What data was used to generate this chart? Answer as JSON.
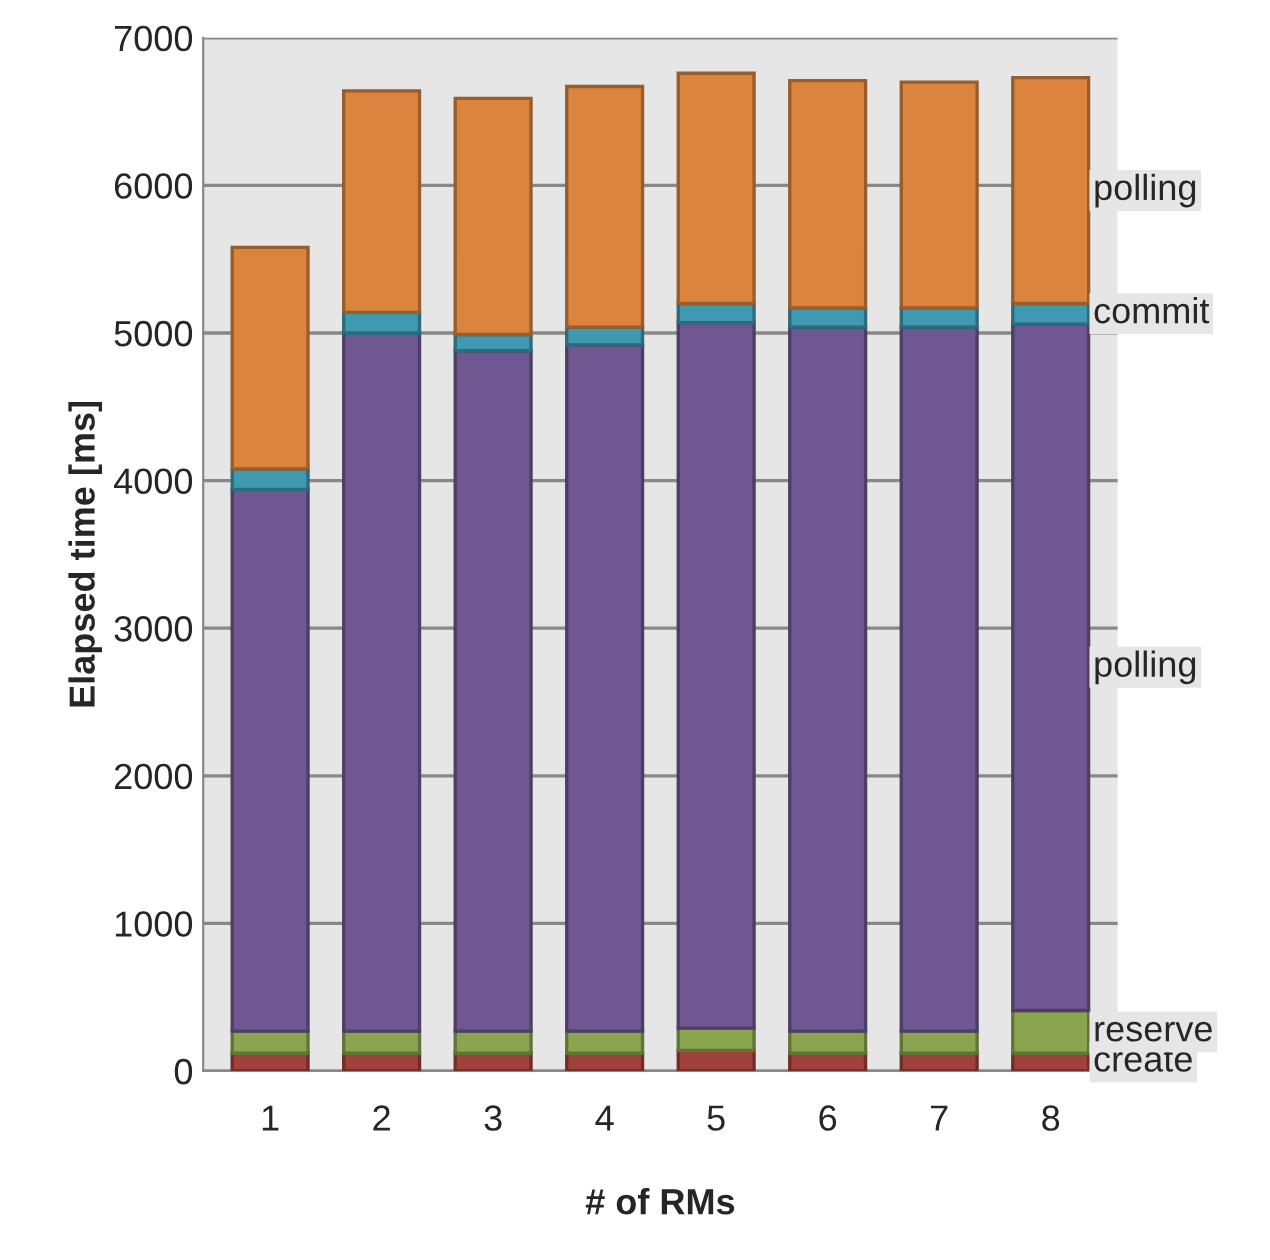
{
  "chart_data": {
    "type": "bar",
    "stacked": true,
    "xlabel": "# of RMs",
    "ylabel": "Elapsed time [ms]",
    "categories": [
      "1",
      "2",
      "3",
      "4",
      "5",
      "6",
      "7",
      "8"
    ],
    "series": [
      {
        "name": "create",
        "color": "#a0413c",
        "values": [
          120,
          120,
          120,
          120,
          140,
          120,
          120,
          120
        ]
      },
      {
        "name": "reserve",
        "color": "#8aa54e",
        "values": [
          150,
          150,
          150,
          150,
          150,
          150,
          150,
          290
        ]
      },
      {
        "name": "polling",
        "color": "#6f5892",
        "values": [
          3670,
          4730,
          4610,
          4650,
          4780,
          4770,
          4770,
          4650
        ]
      },
      {
        "name": "commit",
        "color": "#3f99b0",
        "values": [
          140,
          140,
          110,
          120,
          130,
          130,
          130,
          140
        ]
      },
      {
        "name": "polling",
        "color": "#db843d",
        "values": [
          1500,
          1500,
          1600,
          1630,
          1560,
          1540,
          1530,
          1530
        ]
      }
    ],
    "ylim": [
      0,
      7000
    ],
    "yticks": [
      0,
      1000,
      2000,
      3000,
      4000,
      5000,
      6000,
      7000
    ],
    "grid": "y",
    "legend": false
  }
}
